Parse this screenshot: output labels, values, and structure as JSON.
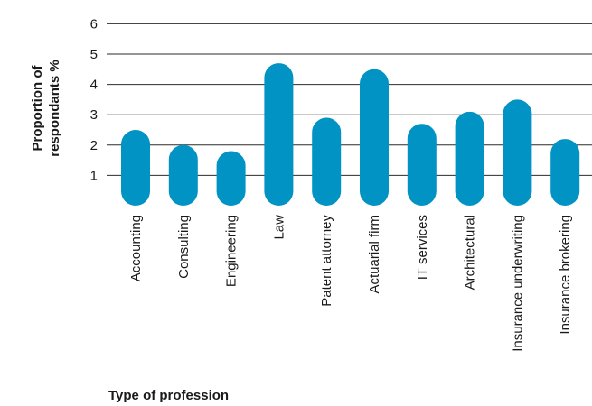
{
  "chart_data": {
    "type": "bar",
    "categories": [
      "Accounting",
      "Consulting",
      "Engineering",
      "Law",
      "Patent attorney",
      "Actuarial firm",
      "IT services",
      "Architectural",
      "Insurance underwriting",
      "Insurance brokering"
    ],
    "values": [
      2.5,
      2.0,
      1.8,
      4.7,
      2.9,
      4.5,
      2.7,
      3.1,
      3.5,
      2.2
    ],
    "ylabel_line1": "Proportion of",
    "ylabel_line2": "respondants %",
    "xlabel": "Type of profession",
    "yticks": [
      1,
      2,
      3,
      4,
      5,
      6
    ],
    "ylim": [
      0,
      6
    ],
    "grid": true,
    "colors": {
      "bar": "#0093c4",
      "grid": "#2b2b2b",
      "text": "#1a1a1a"
    }
  }
}
